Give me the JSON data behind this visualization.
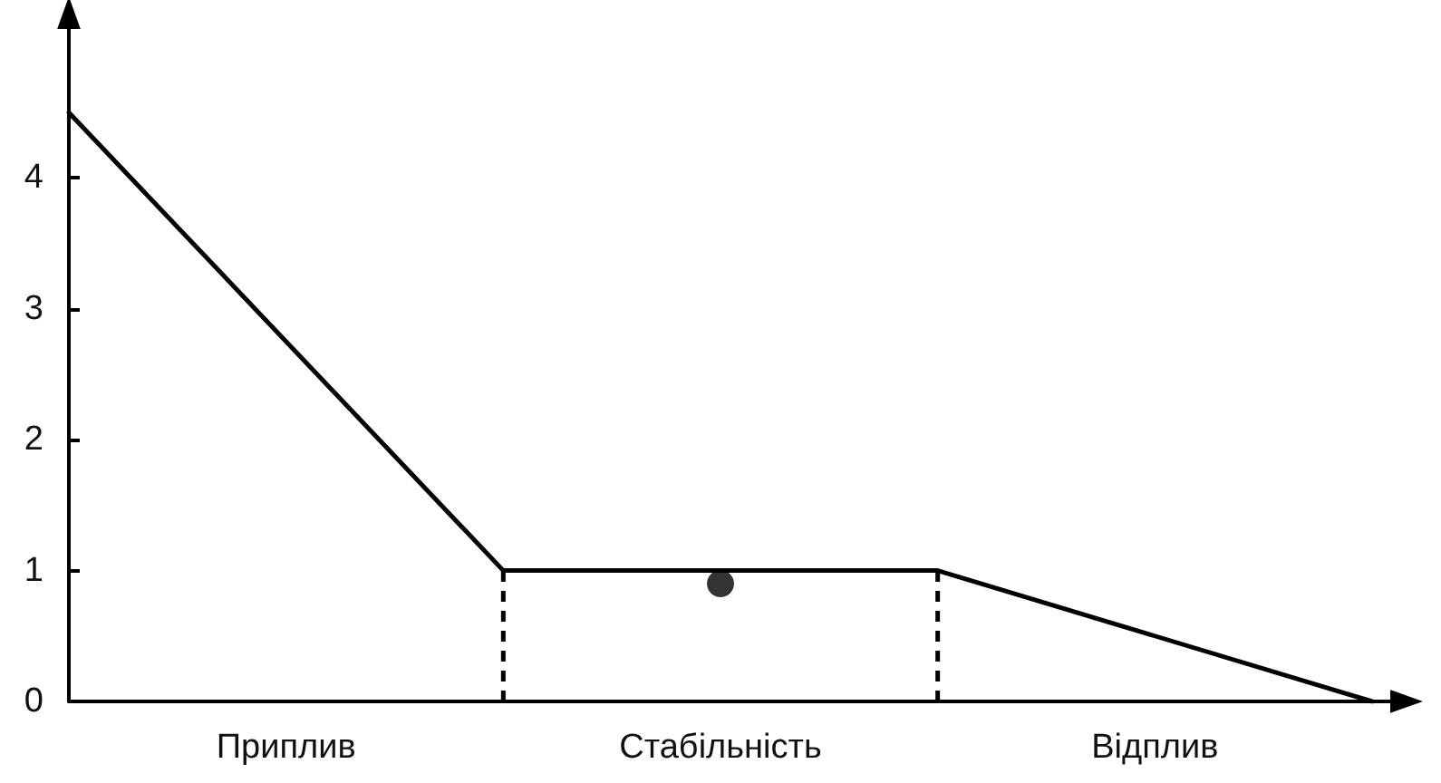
{
  "chart_data": {
    "type": "line",
    "categories": [
      null,
      "Приплив",
      null,
      "Стабільність",
      null,
      "Відплив",
      null
    ],
    "ylim": [
      0,
      5
    ],
    "yticks": [
      0,
      1,
      2,
      3,
      4
    ],
    "grid": false,
    "marker": "none",
    "line_style": "solid",
    "series": [
      {
        "color": "#000000",
        "values": [
          4.5,
          null,
          1,
          null,
          1,
          null,
          0
        ]
      },
      {
        "type": "scatter",
        "color": "#000000",
        "x": [
          "Стабільність"
        ],
        "values": [
          0.9
        ],
        "marker": "circle"
      }
    ]
  }
}
